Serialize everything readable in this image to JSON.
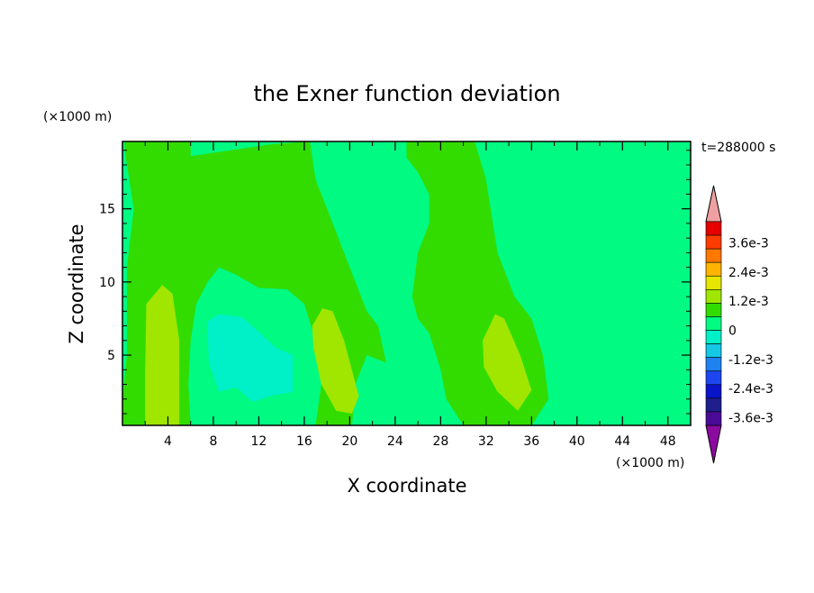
{
  "chart_data": {
    "type": "heatmap",
    "title": "the Exner function deviation",
    "xlabel": "X coordinate",
    "ylabel": "Z coordinate",
    "x_unit": "(×1000 m)",
    "y_unit": "(×1000 m)",
    "time_label": "t=288000 s",
    "xlim": [
      0,
      50
    ],
    "ylim": [
      0.2,
      19.6
    ],
    "x_ticks": [
      4,
      8,
      12,
      16,
      20,
      24,
      28,
      32,
      36,
      40,
      44,
      48
    ],
    "y_ticks": [
      5,
      10,
      15
    ],
    "colorbar": {
      "levels": [
        -0.0042,
        -0.0036,
        -0.003,
        -0.0024,
        -0.0018,
        -0.0012,
        -0.0006,
        0,
        0.0006,
        0.0012,
        0.0018,
        0.0024,
        0.003,
        0.0036,
        0.0042
      ],
      "colors": [
        "#4b0a96",
        "#1e1e8c",
        "#0a14c8",
        "#1e46f0",
        "#1e82f0",
        "#14c8e6",
        "#00f0c8",
        "#00fa82",
        "#32dc00",
        "#a0e600",
        "#e6e600",
        "#ffb400",
        "#ff7800",
        "#ff3c00",
        "#e60000"
      ],
      "under_color": "#8c0aa0",
      "over_color": "#f0a0a0",
      "tick_labels": [
        "3.6e-3",
        "2.4e-3",
        "1.2e-3",
        "0",
        "-1.2e-3",
        "-2.4e-3",
        "-3.6e-3"
      ]
    },
    "regions": [
      {
        "level": "0.0e-3",
        "color": "#00fa82",
        "desc": "background"
      },
      {
        "level": "0.6e-3",
        "color": "#32dc00",
        "desc": "left band"
      },
      {
        "level": "0.6e-3",
        "color": "#32dc00",
        "desc": "central band"
      },
      {
        "level": "1.2e-3",
        "color": "#a0e600",
        "desc": "x~3.5 core"
      },
      {
        "level": "1.2e-3",
        "color": "#a0e600",
        "desc": "x~19 core"
      },
      {
        "level": "1.2e-3",
        "color": "#a0e600",
        "desc": "x~34 core"
      },
      {
        "level": "-0.6e-3",
        "color": "#00f0c8",
        "desc": "x~8-15 low"
      }
    ]
  }
}
